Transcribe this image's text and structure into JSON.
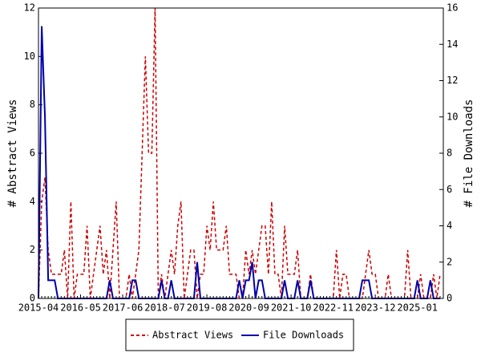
{
  "chart_data": {
    "type": "line",
    "categories": [
      "2015-04",
      null,
      null,
      null,
      null,
      null,
      null,
      null,
      null,
      null,
      null,
      null,
      null,
      "2016-05",
      null,
      null,
      null,
      null,
      null,
      null,
      null,
      null,
      null,
      null,
      null,
      null,
      "2017-06",
      null,
      null,
      null,
      null,
      null,
      null,
      null,
      null,
      null,
      null,
      null,
      null,
      "2018-07",
      null,
      null,
      null,
      null,
      null,
      null,
      null,
      null,
      null,
      null,
      null,
      null,
      "2019-08",
      null,
      null,
      null,
      null,
      null,
      null,
      null,
      null,
      null,
      null,
      null,
      null,
      "2020-09",
      null,
      null,
      null,
      null,
      null,
      null,
      null,
      null,
      null,
      null,
      null,
      null,
      "2021-10",
      null,
      null,
      null,
      null,
      null,
      null,
      null,
      null,
      null,
      null,
      null,
      null,
      "2022-11",
      null,
      null,
      null,
      null,
      null,
      null,
      null,
      null,
      null,
      null,
      null,
      null,
      "2023-12",
      null,
      null,
      null,
      null,
      null,
      null,
      null,
      null,
      null,
      null,
      null,
      null,
      "2025-01",
      null,
      null,
      null,
      null,
      null,
      null,
      null
    ],
    "ylabel": "# Abstract Views",
    "y2label": "# File Downloads",
    "ylim": [
      0,
      12
    ],
    "yticks": [
      0,
      2,
      4,
      6,
      8,
      10,
      12
    ],
    "y2lim": [
      0,
      16
    ],
    "y2ticks": [
      0,
      2,
      4,
      6,
      8,
      10,
      12,
      14,
      16
    ],
    "series": [
      {
        "name": "Abstract Views",
        "color": "#cc0000",
        "dashed": true,
        "values": [
          0,
          4,
          5,
          2,
          1,
          1,
          1,
          1,
          2,
          0,
          4,
          0,
          1,
          1,
          1,
          3,
          0,
          1,
          2,
          3,
          1,
          2,
          0,
          2,
          4,
          0,
          0,
          0,
          1,
          0,
          1,
          2,
          6,
          10,
          6,
          6,
          12,
          0,
          1,
          0,
          1,
          2,
          1,
          3,
          4,
          0,
          1,
          2,
          2,
          0,
          1,
          1,
          3,
          2,
          4,
          2,
          2,
          2,
          3,
          1,
          1,
          1,
          0,
          0,
          2,
          1,
          2,
          1,
          2,
          3,
          3,
          1,
          4,
          1,
          1,
          0,
          3,
          1,
          1,
          1,
          2,
          0,
          0,
          0,
          1,
          0,
          0,
          0,
          0,
          0,
          0,
          0,
          2,
          0,
          1,
          1,
          0,
          0,
          0,
          0,
          0,
          1,
          2,
          1,
          1,
          0,
          0,
          0,
          1,
          0,
          0,
          0,
          0,
          0,
          2,
          0,
          0,
          0,
          1,
          0,
          0,
          0,
          1,
          0,
          1
        ]
      },
      {
        "name": "File Downloads",
        "color": "#0000aa",
        "dashed": false,
        "axis": "y2",
        "values": [
          0,
          15,
          10,
          1,
          1,
          1,
          0,
          0,
          0,
          0,
          0,
          0,
          0,
          0,
          0,
          0,
          0,
          0,
          0,
          0,
          0,
          0,
          1,
          0,
          0,
          0,
          0,
          0,
          0,
          1,
          1,
          0,
          0,
          0,
          0,
          0,
          0,
          0,
          1,
          0,
          0,
          1,
          0,
          0,
          0,
          0,
          0,
          0,
          0,
          2,
          0,
          0,
          0,
          0,
          0,
          0,
          0,
          0,
          0,
          0,
          0,
          0,
          1,
          0,
          1,
          1,
          2,
          0,
          1,
          1,
          0,
          0,
          0,
          0,
          0,
          0,
          1,
          0,
          0,
          0,
          1,
          0,
          0,
          0,
          1,
          0,
          0,
          0,
          0,
          0,
          0,
          0,
          0,
          0,
          0,
          0,
          0,
          0,
          0,
          0,
          1,
          1,
          1,
          0,
          0,
          0,
          0,
          0,
          0,
          0,
          0,
          0,
          0,
          0,
          0,
          0,
          0,
          1,
          0,
          0,
          0,
          1,
          0,
          0,
          0
        ]
      }
    ]
  }
}
